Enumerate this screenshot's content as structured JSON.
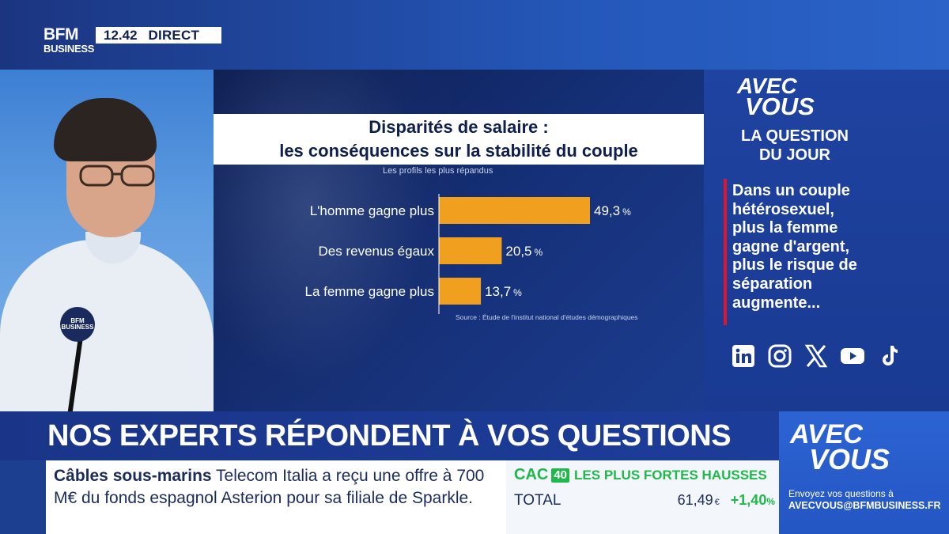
{
  "header": {
    "logo_line1": "BFM",
    "logo_line2": "BUSINESS",
    "time": "12.42",
    "live_label": "DIRECT"
  },
  "studio": {
    "mic_logo": "BFM BUSINESS"
  },
  "chart_data": {
    "type": "bar",
    "orientation": "horizontal",
    "title_line1": "Disparités de salaire :",
    "title_line2": "les conséquences sur la stabilité du couple",
    "subtitle": "Les profils les plus répandus",
    "categories": [
      "L'homme gagne plus",
      "Des revenus égaux",
      "La femme gagne plus"
    ],
    "values": [
      49.3,
      20.5,
      13.7
    ],
    "value_labels": [
      "49,3",
      "20,5",
      "13,7"
    ],
    "unit": "%",
    "bar_color": "#f0a01e",
    "source": "Source : Étude de l'institut national d'études démographiques",
    "xlim": [
      0,
      49.3
    ]
  },
  "sidebar": {
    "brand_line1": "AVEC",
    "brand_line2": "VOUS",
    "section_line1": "LA QUESTION",
    "section_line2": "DU JOUR",
    "question_lines": [
      "Dans un couple",
      "hétérosexuel,",
      "plus la femme",
      "gagne d'argent,",
      "plus le risque de",
      "séparation",
      "augmente..."
    ],
    "socials": [
      "linkedin-icon",
      "instagram-icon",
      "x-icon",
      "youtube-icon",
      "tiktok-icon"
    ]
  },
  "bottom": {
    "headline": "NOS EXPERTS RÉPONDENT À VOS QUESTIONS",
    "ticker_keyword": "Câbles sous-marins",
    "ticker_text": " Telecom Italia a reçu une offre à 700 M€ du fonds espagnol Asterion pour sa filiale de Sparkle.",
    "market": {
      "index": "CAC",
      "badge": "40",
      "title": "LES PLUS FORTES HAUSSES",
      "row_label": "TOTAL",
      "row_value": "61,49",
      "row_currency": "€",
      "row_change": "+1,40",
      "row_change_unit": "%"
    },
    "promo": {
      "brand_line1": "AVEC",
      "brand_line2": "VOUS",
      "text": "Envoyez vos questions à",
      "email": "AVECVOUS@BFMBUSINESS.FR"
    }
  },
  "colors": {
    "accent_red": "#e2142b",
    "bar": "#f0a01e",
    "market_green": "#1fb84a",
    "navy": "#1a3588"
  }
}
